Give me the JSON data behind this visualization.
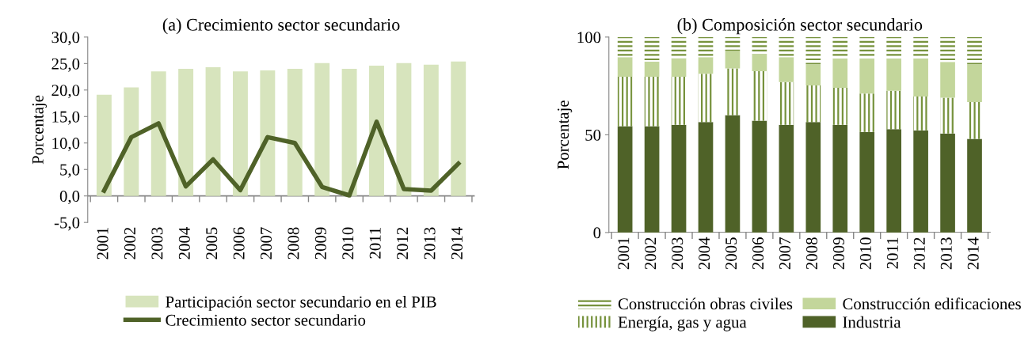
{
  "chart_data": [
    {
      "type": "bar",
      "title": "(a) Crecimiento sector secundario",
      "ylabel": "Porcentaje",
      "categories": [
        "2001",
        "2002",
        "2003",
        "2004",
        "2005",
        "2006",
        "2007",
        "2008",
        "2009",
        "2010",
        "2011",
        "2012",
        "2013",
        "2014"
      ],
      "series": [
        {
          "name": "Participación sector secundario en el PIB",
          "type": "bar",
          "color": "#d7e4bd",
          "values": [
            19.1,
            20.5,
            23.5,
            24.0,
            24.3,
            23.5,
            23.7,
            24.0,
            25.1,
            24.0,
            24.6,
            25.1,
            24.8,
            25.4
          ]
        },
        {
          "name": "Crecimiento sector secundario",
          "type": "line",
          "color": "#4f6228",
          "values": [
            1.0,
            11.1,
            13.7,
            1.8,
            6.9,
            1.1,
            11.1,
            10.0,
            1.7,
            0.1,
            14.0,
            1.3,
            1.0,
            6.1
          ]
        }
      ],
      "ylim": [
        -5,
        30
      ],
      "yticks": [
        {
          "value": -5,
          "label": "-5,0"
        },
        {
          "value": 0,
          "label": "0,0"
        },
        {
          "value": 5,
          "label": "5,0"
        },
        {
          "value": 10,
          "label": "10,0"
        },
        {
          "value": 15,
          "label": "15,0"
        },
        {
          "value": 20,
          "label": "20,0"
        },
        {
          "value": 25,
          "label": "25,0"
        },
        {
          "value": 30,
          "label": "30,0"
        }
      ],
      "grid": false,
      "legend": "bottom",
      "marker": "none",
      "line_style": "solid"
    },
    {
      "type": "bar",
      "stacked": true,
      "title": "(b) Composición sector secundario",
      "ylabel": "Porcentaje",
      "categories": [
        "2001",
        "2002",
        "2003",
        "2004",
        "2005",
        "2006",
        "2007",
        "2008",
        "2009",
        "2010",
        "2011",
        "2012",
        "2013",
        "2014"
      ],
      "series": [
        {
          "name": "Industria",
          "color": "#4f6228",
          "values": [
            54.4,
            54.4,
            55.1,
            56.5,
            60.1,
            57.2,
            55.1,
            56.5,
            55.1,
            51.5,
            52.9,
            52.3,
            50.7,
            47.9
          ]
        },
        {
          "name": "Energía, gas y agua",
          "color": "#76923c",
          "values": [
            25.3,
            25.3,
            24.6,
            24.7,
            23.9,
            25.3,
            21.9,
            18.8,
            18.9,
            19.6,
            19.6,
            17.3,
            18.3,
            18.9
          ]
        },
        {
          "name": "Construcción edificaciones",
          "color": "#c3d69b",
          "values": [
            10.0,
            7.7,
            9.5,
            8.5,
            9.0,
            8.8,
            12.7,
            10.8,
            15.1,
            18.0,
            16.6,
            19.5,
            18.3,
            19.3
          ]
        },
        {
          "name": "Construcción obras civiles",
          "color": "#76923c",
          "values": [
            10.3,
            12.6,
            10.8,
            10.3,
            7.0,
            8.7,
            10.3,
            13.9,
            10.9,
            10.9,
            10.9,
            10.9,
            12.7,
            13.9
          ]
        }
      ],
      "ylim": [
        0,
        100
      ],
      "yticks": [
        0,
        50,
        100
      ],
      "grid": false,
      "legend": "bottom"
    }
  ]
}
